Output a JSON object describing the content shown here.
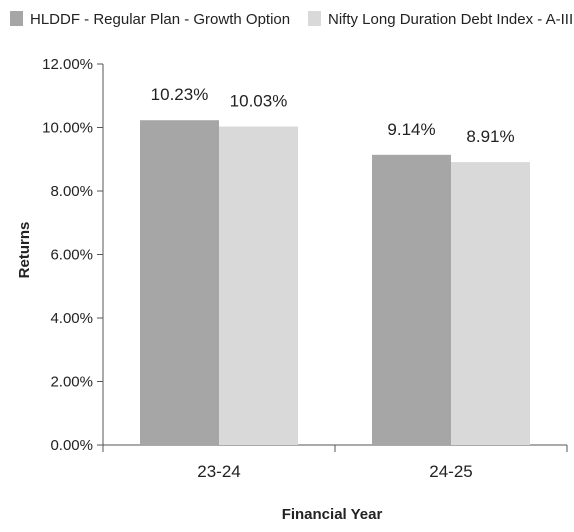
{
  "chart_data": {
    "type": "bar",
    "title": "",
    "xlabel": "Financial Year",
    "ylabel": "Returns",
    "categories": [
      "23-24",
      "24-25"
    ],
    "series": [
      {
        "name": "HLDDF - Regular Plan - Growth Option",
        "values": [
          10.23,
          9.14
        ],
        "labels": [
          "10.23%",
          "9.14%"
        ],
        "color": "#a6a6a6"
      },
      {
        "name": "Nifty Long Duration Debt Index - A-III",
        "values": [
          10.03,
          8.91
        ],
        "labels": [
          "10.03%",
          "8.91%"
        ],
        "color": "#d9d9d9"
      }
    ],
    "ylim": [
      0,
      12
    ],
    "yticks": [
      0,
      2,
      4,
      6,
      8,
      10,
      12
    ],
    "ytick_labels": [
      "0.00%",
      "2.00%",
      "4.00%",
      "6.00%",
      "8.00%",
      "10.00%",
      "12.00%"
    ],
    "grid": false,
    "legend_position": "top"
  }
}
